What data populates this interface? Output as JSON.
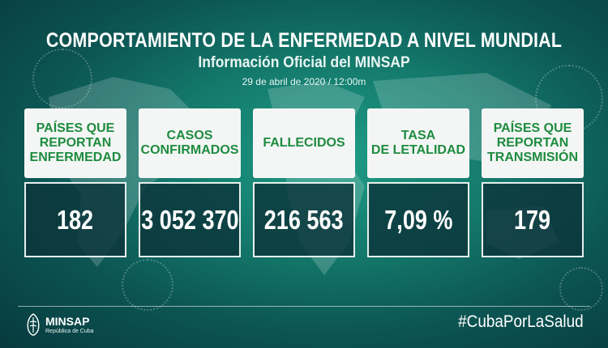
{
  "header": {
    "title": "COMPORTAMIENTO DE LA ENFERMEDAD A NIVEL MUNDIAL",
    "subtitle": "Información Oficial del MINSAP",
    "date": "29 de abril de 2020 / 12:00m"
  },
  "cards": [
    {
      "label": "PAÍSES QUE\nREPORTAN\nENFERMEDAD",
      "value": "182"
    },
    {
      "label": "CASOS\nCONFIRMADOS",
      "value": "3 052 370"
    },
    {
      "label": "FALLECIDOS",
      "value": "216 563"
    },
    {
      "label": "TASA\nDE LETALIDAD",
      "value": "7,09 %"
    },
    {
      "label": "PAÍSES QUE\nREPORTAN\nTRANSMISIÓN",
      "value": "179"
    }
  ],
  "footer": {
    "logo_name": "MINSAP",
    "logo_sub": "República de Cuba",
    "hashtag": "#CubaPorLaSalud"
  },
  "colors": {
    "background": "#147a6c",
    "label_text": "#1e8b3f",
    "value_box": "#0c343a"
  }
}
